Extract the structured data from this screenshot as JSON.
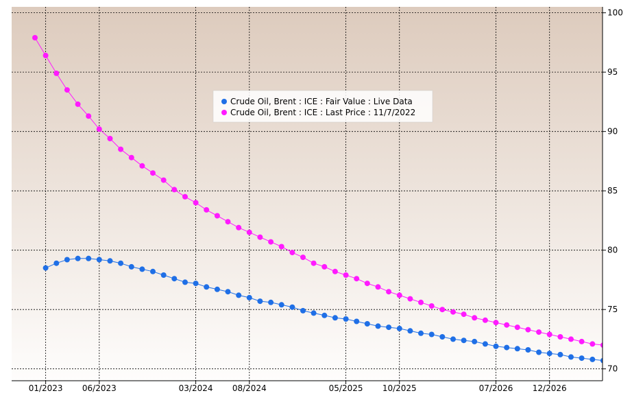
{
  "chart_data": {
    "type": "line",
    "title": "",
    "xlabel": "",
    "ylabel": "",
    "ylim": [
      69,
      100.5
    ],
    "x_ticks": [
      "01/2023",
      "06/2023",
      "03/2024",
      "08/2024",
      "05/2025",
      "10/2025",
      "07/2026",
      "12/2026"
    ],
    "y_ticks": [
      70,
      75,
      80,
      85,
      90,
      95,
      100
    ],
    "grid": true,
    "legend_position": "top-center",
    "colors": {
      "background_top": "#ddcbbd",
      "background_bottom": "#fefdfc",
      "fair_value": "#1f6fe6",
      "last_price": "#ff1aff"
    },
    "series": [
      {
        "name": "Crude Oil, Brent : ICE : Fair Value : Live Data",
        "color": "#1f6fe6",
        "x": [
          "12/2022",
          "01/2023",
          "02/2023",
          "03/2023",
          "04/2023",
          "05/2023",
          "06/2023",
          "07/2023",
          "08/2023",
          "09/2023",
          "10/2023",
          "11/2023",
          "12/2023",
          "01/2024",
          "02/2024",
          "03/2024",
          "04/2024",
          "05/2024",
          "06/2024",
          "07/2024",
          "08/2024",
          "09/2024",
          "10/2024",
          "11/2024",
          "12/2024",
          "01/2025",
          "02/2025",
          "03/2025",
          "04/2025",
          "05/2025",
          "06/2025",
          "07/2025",
          "08/2025",
          "09/2025",
          "10/2025",
          "11/2025",
          "12/2025",
          "01/2026",
          "02/2026",
          "03/2026",
          "04/2026",
          "05/2026",
          "06/2026",
          "07/2026",
          "08/2026",
          "09/2026",
          "10/2026",
          "11/2026",
          "12/2026",
          "01/2027",
          "02/2027",
          "03/2027",
          "04/2027",
          "05/2027"
        ],
        "values": [
          null,
          78.5,
          78.9,
          79.2,
          79.3,
          79.3,
          79.2,
          79.1,
          78.9,
          78.6,
          78.4,
          78.2,
          77.9,
          77.6,
          77.3,
          77.2,
          76.9,
          76.7,
          76.5,
          76.2,
          76.0,
          75.7,
          75.6,
          75.4,
          75.2,
          74.9,
          74.7,
          74.5,
          74.3,
          74.2,
          74.0,
          73.8,
          73.6,
          73.5,
          73.4,
          73.2,
          73.0,
          72.9,
          72.7,
          72.5,
          72.4,
          72.3,
          72.1,
          71.9,
          71.8,
          71.7,
          71.6,
          71.4,
          71.3,
          71.2,
          71.0,
          70.9,
          70.8,
          70.7
        ]
      },
      {
        "name": "Crude Oil, Brent : ICE : Last Price : 11/7/2022",
        "color": "#ff1aff",
        "x": [
          "12/2022",
          "01/2023",
          "02/2023",
          "03/2023",
          "04/2023",
          "05/2023",
          "06/2023",
          "07/2023",
          "08/2023",
          "09/2023",
          "10/2023",
          "11/2023",
          "12/2023",
          "01/2024",
          "02/2024",
          "03/2024",
          "04/2024",
          "05/2024",
          "06/2024",
          "07/2024",
          "08/2024",
          "09/2024",
          "10/2024",
          "11/2024",
          "12/2024",
          "01/2025",
          "02/2025",
          "03/2025",
          "04/2025",
          "05/2025",
          "06/2025",
          "07/2025",
          "08/2025",
          "09/2025",
          "10/2025",
          "11/2025",
          "12/2025",
          "01/2026",
          "02/2026",
          "03/2026",
          "04/2026",
          "05/2026",
          "06/2026",
          "07/2026",
          "08/2026",
          "09/2026",
          "10/2026",
          "11/2026",
          "12/2026",
          "01/2027",
          "02/2027",
          "03/2027",
          "04/2027",
          "05/2027"
        ],
        "values": [
          97.9,
          96.4,
          94.9,
          93.5,
          92.3,
          91.3,
          90.2,
          89.4,
          88.5,
          87.8,
          87.1,
          86.5,
          85.9,
          85.1,
          84.5,
          84.0,
          83.4,
          82.9,
          82.4,
          81.9,
          81.5,
          81.1,
          80.7,
          80.3,
          79.8,
          79.4,
          78.9,
          78.6,
          78.2,
          77.9,
          77.6,
          77.2,
          76.9,
          76.5,
          76.2,
          75.9,
          75.6,
          75.3,
          75.0,
          74.8,
          74.6,
          74.3,
          74.1,
          73.9,
          73.7,
          73.5,
          73.3,
          73.1,
          72.9,
          72.7,
          72.5,
          72.3,
          72.1,
          72.0
        ]
      }
    ]
  }
}
